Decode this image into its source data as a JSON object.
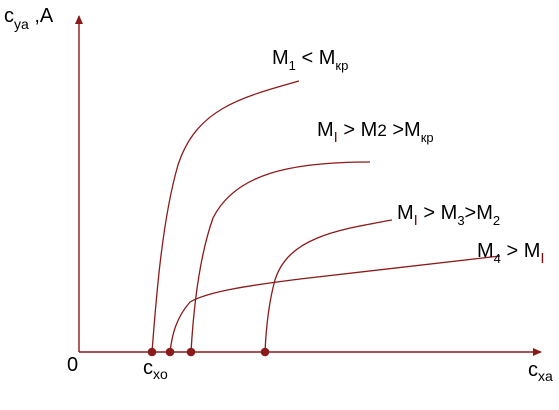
{
  "colors": {
    "axis": "#8b1a1a",
    "curve": "#8b1a1a",
    "point": "#8b1a1a",
    "text": "#000000",
    "special_symbol": "#7a0f0f",
    "background": "#ffffff"
  },
  "axes": {
    "y_label_main": "c",
    "y_label_sub": "ya",
    "y_label_suffix": " ,A",
    "x_label_main": "c",
    "x_label_sub": "xa",
    "origin": "0",
    "marked_point_main": "c",
    "marked_point_sub": "xo"
  },
  "curve_labels": {
    "m1": {
      "a": "M",
      "a_sub": "1",
      "op": " < ",
      "b": "M",
      "b_sub": "кр"
    },
    "m2": {
      "a": "M",
      "a_sub": "I",
      "op1": " > ",
      "mid": "M",
      "mid_sub": "2",
      "op2": " >",
      "b": "M",
      "b_sub": "кр"
    },
    "m3": {
      "a": "M",
      "a_sub": "I",
      "op1": " > ",
      "mid": "M",
      "mid_sub": "3",
      "op2": ">",
      "b": "M",
      "b_sub": "2"
    },
    "m4": {
      "a": "M",
      "a_sub": "4",
      "op": " > ",
      "b": "M",
      "b_sub": "I"
    }
  }
}
